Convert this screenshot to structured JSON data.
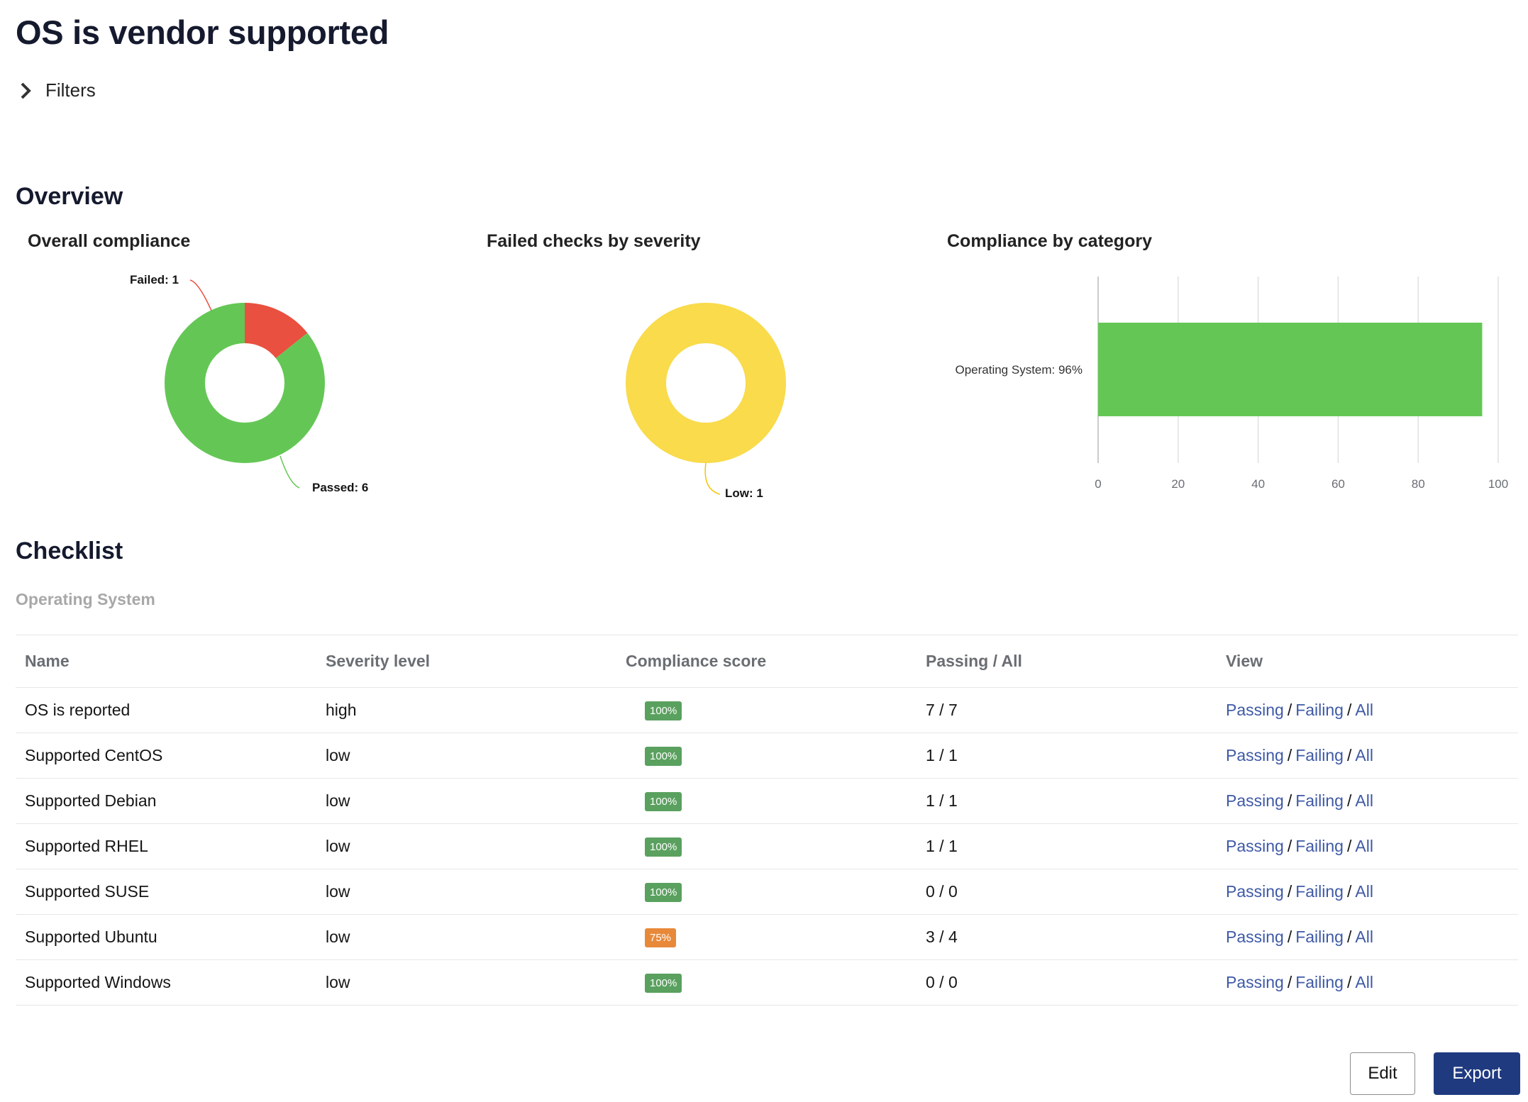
{
  "page": {
    "title": "OS is vendor supported"
  },
  "filters": {
    "label": "Filters"
  },
  "overview": {
    "title": "Overview",
    "charts": [
      {
        "title": "Overall compliance",
        "chart_data": {
          "type": "pie",
          "categories": [
            "Passed",
            "Failed"
          ],
          "values": [
            6,
            1
          ],
          "labels": [
            "Passed: 6",
            "Failed: 1"
          ],
          "colors": [
            "#64c755",
            "#e9503f"
          ],
          "donut": true
        }
      },
      {
        "title": "Failed checks by severity",
        "chart_data": {
          "type": "pie",
          "categories": [
            "Low"
          ],
          "values": [
            1
          ],
          "labels": [
            "Low: 1"
          ],
          "colors": [
            "#f9db4b"
          ],
          "donut": true
        }
      },
      {
        "title": "Compliance by category",
        "chart_data": {
          "type": "bar",
          "orientation": "horizontal",
          "categories": [
            "Operating System"
          ],
          "values": [
            96
          ],
          "labels": [
            "Operating System: 96%"
          ],
          "xlim": [
            0,
            100
          ],
          "xticks": [
            "0",
            "20",
            "40",
            "60",
            "80",
            "100"
          ],
          "grid": true,
          "color": "#64c755"
        }
      }
    ]
  },
  "checklist": {
    "title": "Checklist",
    "category": "Operating System",
    "columns": [
      "Name",
      "Severity level",
      "Compliance score",
      "Passing / All",
      "View"
    ],
    "rows": [
      {
        "name": "OS is reported",
        "severity": "high",
        "score": "100%",
        "score_color": "#5aa15f",
        "passing": "7 / 7"
      },
      {
        "name": "Supported CentOS",
        "severity": "low",
        "score": "100%",
        "score_color": "#5aa15f",
        "passing": "1 / 1"
      },
      {
        "name": "Supported Debian",
        "severity": "low",
        "score": "100%",
        "score_color": "#5aa15f",
        "passing": "1 / 1"
      },
      {
        "name": "Supported RHEL",
        "severity": "low",
        "score": "100%",
        "score_color": "#5aa15f",
        "passing": "1 / 1"
      },
      {
        "name": "Supported SUSE",
        "severity": "low",
        "score": "100%",
        "score_color": "#5aa15f",
        "passing": "0 / 0"
      },
      {
        "name": "Supported Ubuntu",
        "severity": "low",
        "score": "75%",
        "score_color": "#e8893a",
        "passing": "3 / 4"
      },
      {
        "name": "Supported Windows",
        "severity": "low",
        "score": "100%",
        "score_color": "#5aa15f",
        "passing": "0 / 0"
      }
    ],
    "view_links": {
      "passing": "Passing",
      "failing": "Failing",
      "all": "All",
      "separator": "/"
    }
  },
  "actions": {
    "edit": "Edit",
    "export": "Export"
  }
}
